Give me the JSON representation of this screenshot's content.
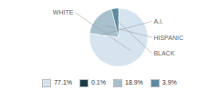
{
  "chart_data": {
    "type": "pie",
    "categories": [
      "WHITE",
      "A.I.",
      "HISPANIC",
      "BLACK"
    ],
    "values": [
      77.1,
      0.1,
      18.9,
      3.9
    ],
    "colors": [
      "#d6e4f0",
      "#1a3a4a",
      "#a8bfcc",
      "#5a8a9f"
    ],
    "value_labels": [
      "77.1%",
      "0.1%",
      "18.9%",
      "3.9%"
    ],
    "legend": "bottom"
  }
}
